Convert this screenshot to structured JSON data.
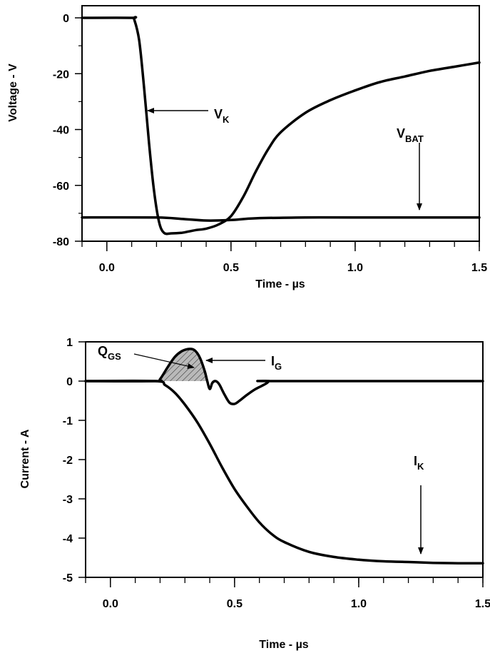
{
  "chart_data": [
    {
      "type": "line",
      "xlabel": "Time - µs",
      "ylabel": "Voltage - V",
      "xlim": [
        -0.1,
        1.5
      ],
      "ylim": [
        -80,
        5
      ],
      "xticks": [
        0.0,
        0.5,
        1.0,
        1.5
      ],
      "xtick_labels": [
        "0.0",
        "0.5",
        "1.0",
        "1.5"
      ],
      "yticks": [
        0,
        -20,
        -40,
        -60,
        -80
      ],
      "ytick_labels": [
        "0",
        "-20",
        "-40",
        "-60",
        "-80"
      ],
      "grid": false,
      "series": [
        {
          "name": "V_K",
          "x": [
            -0.1,
            0.1,
            0.11,
            0.13,
            0.15,
            0.17,
            0.19,
            0.21,
            0.23,
            0.26,
            0.3,
            0.33,
            0.36,
            0.4,
            0.45,
            0.5,
            0.55,
            0.6,
            0.65,
            0.7,
            0.8,
            0.9,
            1.0,
            1.1,
            1.2,
            1.3,
            1.4,
            1.5
          ],
          "y": [
            0,
            0,
            -0.5,
            -8,
            -25,
            -45,
            -62,
            -73,
            -77,
            -77.2,
            -77,
            -76.5,
            -76,
            -75.5,
            -74,
            -71,
            -64,
            -55,
            -47,
            -41,
            -34,
            -29.5,
            -26,
            -23,
            -21,
            -19,
            -17.5,
            -16
          ]
        },
        {
          "name": "V_BAT",
          "x": [
            -0.1,
            0.2,
            0.3,
            0.4,
            0.5,
            0.6,
            0.8,
            1.0,
            1.5
          ],
          "y": [
            -71.5,
            -71.5,
            -72,
            -72.6,
            -72.4,
            -71.8,
            -71.5,
            -71.5,
            -71.5
          ]
        }
      ],
      "annotations": [
        {
          "main": "V",
          "sub": "K"
        },
        {
          "main": "V",
          "sub": "BAT"
        }
      ]
    },
    {
      "type": "line",
      "xlabel": "Time - µs",
      "ylabel": "Current - A",
      "xlim": [
        -0.1,
        1.5
      ],
      "ylim": [
        -5,
        1
      ],
      "xticks": [
        0.0,
        0.5,
        1.0,
        1.5
      ],
      "xtick_labels": [
        "0.0",
        "0.5",
        "1.0",
        "1.5"
      ],
      "yticks": [
        1,
        0,
        -1,
        -2,
        -3,
        -4,
        -5
      ],
      "ytick_labels": [
        "1",
        "0",
        "-1",
        "-2",
        "-3",
        "-4",
        "-5"
      ],
      "grid": false,
      "series": [
        {
          "name": "I_G",
          "x": [
            -0.1,
            0.18,
            0.2,
            0.23,
            0.26,
            0.29,
            0.32,
            0.34,
            0.36,
            0.38,
            0.39,
            0.4,
            0.41,
            0.42,
            0.43,
            0.44,
            0.46,
            0.48,
            0.5,
            0.52,
            0.55,
            0.58,
            0.61,
            0.63,
            0.64,
            0.66,
            1.5
          ],
          "y": [
            0,
            0,
            0.05,
            0.35,
            0.62,
            0.77,
            0.82,
            0.78,
            0.6,
            0.25,
            0.0,
            -0.2,
            -0.05,
            0.0,
            -0.02,
            -0.1,
            -0.35,
            -0.55,
            -0.58,
            -0.5,
            -0.35,
            -0.22,
            -0.12,
            -0.05,
            0,
            0,
            0
          ]
        },
        {
          "name": "I_K",
          "x": [
            -0.1,
            0.18,
            0.22,
            0.26,
            0.3,
            0.35,
            0.4,
            0.45,
            0.5,
            0.55,
            0.6,
            0.65,
            0.7,
            0.8,
            0.9,
            1.0,
            1.1,
            1.2,
            1.3,
            1.4,
            1.5
          ],
          "y": [
            0,
            0,
            -0.1,
            -0.3,
            -0.6,
            -1.05,
            -1.6,
            -2.2,
            -2.75,
            -3.2,
            -3.6,
            -3.9,
            -4.1,
            -4.35,
            -4.48,
            -4.55,
            -4.59,
            -4.61,
            -4.63,
            -4.64,
            -4.64
          ]
        }
      ],
      "annotations": [
        {
          "main": "Q",
          "sub": "GS"
        },
        {
          "main": "I",
          "sub": "G"
        },
        {
          "main": "I",
          "sub": "K"
        }
      ]
    }
  ]
}
